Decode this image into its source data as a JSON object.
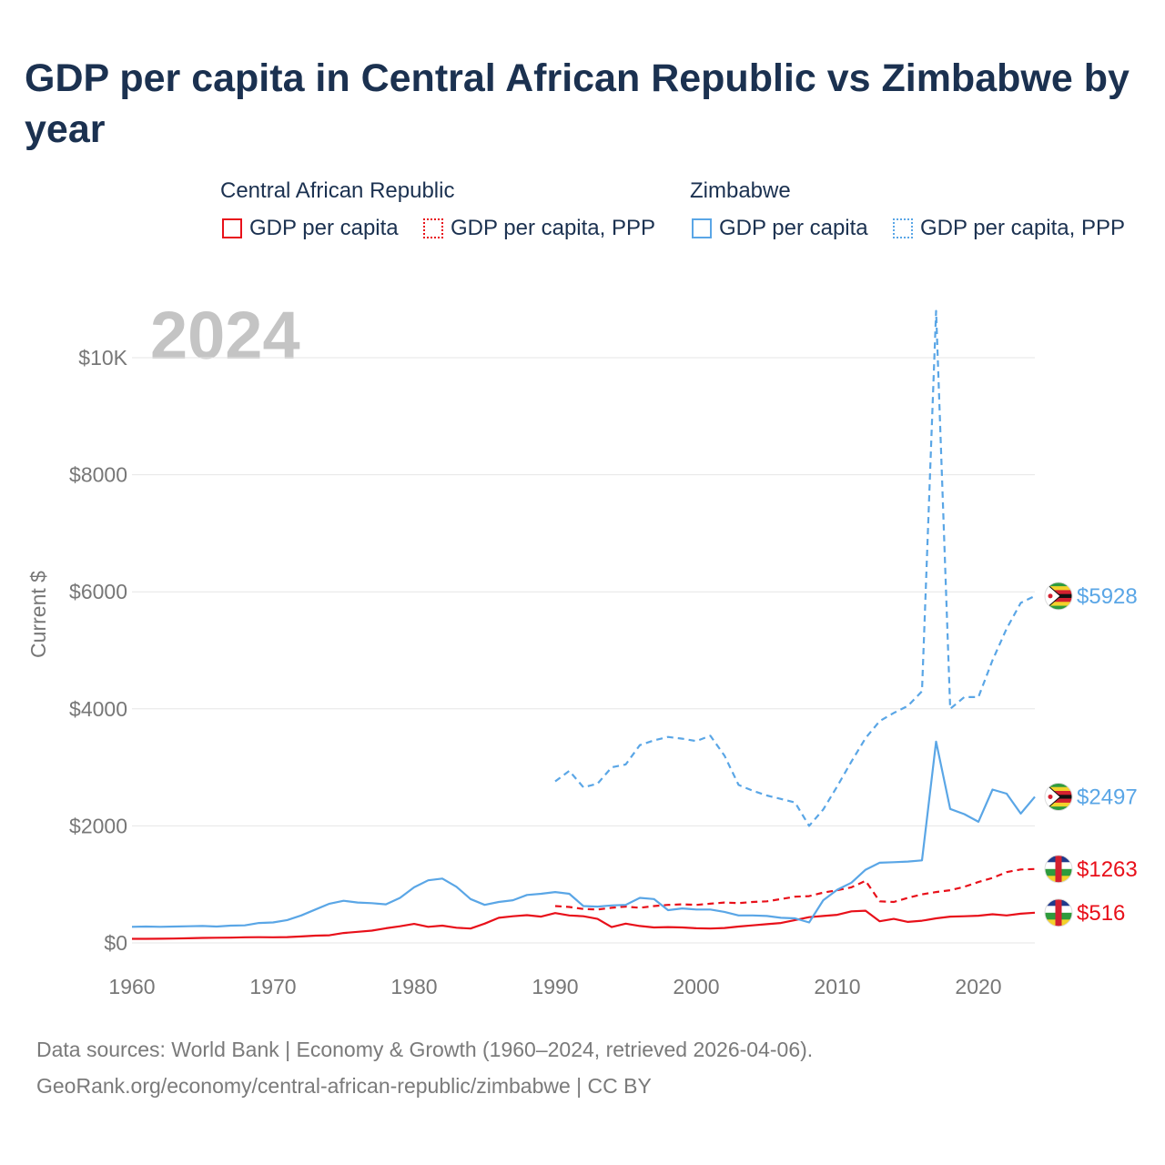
{
  "title": "GDP per capita in Central African Republic vs Zimbabwe by year",
  "legend": {
    "groups": [
      {
        "country": "Central African Republic",
        "items": [
          "GDP per capita",
          "GDP per capita, PPP"
        ]
      },
      {
        "country": "Zimbabwe",
        "items": [
          "GDP per capita",
          "GDP per capita, PPP"
        ]
      }
    ]
  },
  "colors": {
    "car": "#e8101a",
    "zim": "#5aa6e6",
    "grid": "#e6e6e6",
    "axis_text": "#777777",
    "year_watermark": "#c4c4c4"
  },
  "source": {
    "line1": "Data sources: World Bank | Economy & Growth (1960–2024, retrieved 2026-04-06).",
    "line2": "GeoRank.org/economy/central-african-republic/zimbabwe | CC BY"
  },
  "chart_data": {
    "type": "line",
    "title": "GDP per capita in Central African Republic vs Zimbabwe by year",
    "year_label": "2024",
    "xlabel": "",
    "ylabel": "Current $",
    "xlim": [
      1960,
      2024
    ],
    "ylim": [
      0,
      10500
    ],
    "x_ticks": [
      1960,
      1970,
      1980,
      1990,
      2000,
      2010,
      2020
    ],
    "y_ticks": [
      0,
      2000,
      4000,
      6000,
      8000,
      10000
    ],
    "y_tick_labels": [
      "$0",
      "$2000",
      "$4000",
      "$6000",
      "$8000",
      "$10K"
    ],
    "grid": true,
    "series": [
      {
        "name": "Central African Republic — GDP per capita",
        "country": "car",
        "style": "solid",
        "end_label": "$516",
        "x": [
          1960,
          1961,
          1962,
          1963,
          1964,
          1965,
          1966,
          1967,
          1968,
          1969,
          1970,
          1971,
          1972,
          1973,
          1974,
          1975,
          1976,
          1977,
          1978,
          1979,
          1980,
          1981,
          1982,
          1983,
          1984,
          1985,
          1986,
          1987,
          1988,
          1989,
          1990,
          1991,
          1992,
          1993,
          1994,
          1995,
          1996,
          1997,
          1998,
          1999,
          2000,
          2001,
          2002,
          2003,
          2004,
          2005,
          2006,
          2007,
          2008,
          2009,
          2010,
          2011,
          2012,
          2013,
          2014,
          2015,
          2016,
          2017,
          2018,
          2019,
          2020,
          2021,
          2022,
          2023,
          2024
        ],
        "values": [
          70,
          70,
          72,
          75,
          80,
          85,
          88,
          90,
          97,
          98,
          97,
          100,
          110,
          125,
          130,
          170,
          190,
          210,
          250,
          285,
          325,
          275,
          295,
          260,
          245,
          330,
          430,
          455,
          475,
          450,
          510,
          470,
          455,
          410,
          270,
          330,
          290,
          265,
          270,
          265,
          250,
          245,
          255,
          280,
          300,
          320,
          340,
          390,
          440,
          460,
          480,
          540,
          550,
          370,
          410,
          360,
          380,
          420,
          450,
          455,
          465,
          490,
          470,
          500,
          516
        ]
      },
      {
        "name": "Central African Republic — GDP per capita, PPP",
        "country": "car",
        "style": "dashed",
        "end_label": "$1263",
        "x": [
          1990,
          1991,
          1992,
          1993,
          1994,
          1995,
          1996,
          1997,
          1998,
          1999,
          2000,
          2001,
          2002,
          2003,
          2004,
          2005,
          2006,
          2007,
          2008,
          2009,
          2010,
          2011,
          2012,
          2013,
          2014,
          2015,
          2016,
          2017,
          2018,
          2019,
          2020,
          2021,
          2022,
          2023,
          2024
        ],
        "values": [
          630,
          615,
          580,
          570,
          600,
          620,
          600,
          630,
          650,
          660,
          650,
          670,
          690,
          680,
          700,
          710,
          750,
          790,
          800,
          860,
          900,
          950,
          1060,
          710,
          700,
          770,
          830,
          870,
          900,
          960,
          1040,
          1110,
          1210,
          1255,
          1263
        ]
      },
      {
        "name": "Zimbabwe — GDP per capita",
        "country": "zim",
        "style": "solid",
        "end_label": "$2497",
        "x": [
          1960,
          1961,
          1962,
          1963,
          1964,
          1965,
          1966,
          1967,
          1968,
          1969,
          1970,
          1971,
          1972,
          1973,
          1974,
          1975,
          1976,
          1977,
          1978,
          1979,
          1980,
          1981,
          1982,
          1983,
          1984,
          1985,
          1986,
          1987,
          1988,
          1989,
          1990,
          1991,
          1992,
          1993,
          1994,
          1995,
          1996,
          1997,
          1998,
          1999,
          2000,
          2001,
          2002,
          2003,
          2004,
          2005,
          2006,
          2007,
          2008,
          2009,
          2010,
          2011,
          2012,
          2013,
          2014,
          2015,
          2016,
          2017,
          2018,
          2019,
          2020,
          2021,
          2022,
          2023,
          2024
        ],
        "values": [
          275,
          280,
          275,
          280,
          285,
          290,
          280,
          295,
          300,
          340,
          350,
          390,
          470,
          570,
          670,
          720,
          690,
          680,
          660,
          770,
          950,
          1070,
          1100,
          960,
          750,
          650,
          700,
          730,
          820,
          840,
          870,
          840,
          630,
          620,
          640,
          650,
          770,
          750,
          560,
          590,
          570,
          570,
          530,
          470,
          470,
          460,
          430,
          420,
          350,
          730,
          910,
          1030,
          1250,
          1370,
          1380,
          1390,
          1410,
          3440,
          2290,
          2200,
          2070,
          2620,
          2550,
          2210,
          2497
        ]
      },
      {
        "name": "Zimbabwe — GDP per capita, PPP",
        "country": "zim",
        "style": "dashed",
        "end_label": "$5928",
        "x": [
          1990,
          1991,
          1992,
          1993,
          1994,
          1995,
          1996,
          1997,
          1998,
          1999,
          2000,
          2001,
          2002,
          2003,
          2004,
          2005,
          2006,
          2007,
          2008,
          2009,
          2010,
          2011,
          2012,
          2013,
          2014,
          2015,
          2016,
          2017,
          2018,
          2019,
          2020,
          2021,
          2022,
          2023,
          2024
        ],
        "values": [
          2760,
          2940,
          2660,
          2720,
          3000,
          3050,
          3380,
          3460,
          3520,
          3490,
          3450,
          3540,
          3200,
          2700,
          2600,
          2520,
          2460,
          2400,
          2000,
          2280,
          2680,
          3100,
          3500,
          3790,
          3930,
          4050,
          4300,
          10800,
          4000,
          4200,
          4200,
          4830,
          5370,
          5810,
          5928
        ]
      }
    ]
  }
}
